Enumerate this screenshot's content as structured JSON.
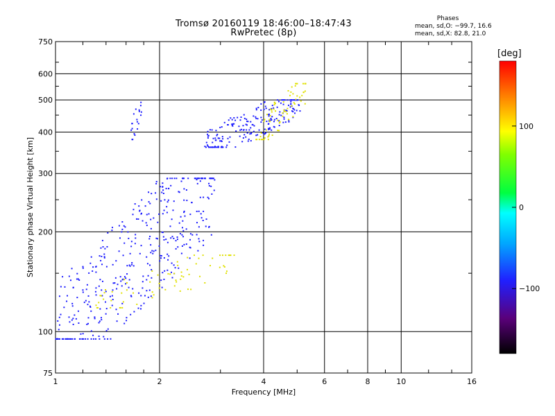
{
  "figure": {
    "title_line1": "Tromsø 20160119 18:46:00–18:47:43",
    "title_line2": "RwPretec (8p)",
    "stats_title": "Phases",
    "stats_line1": "mean, sd,O: −99.7, 16.6",
    "stats_line2": "mean, sd,X:  82.8, 21.0",
    "colorbar_label": "[deg]",
    "colorbar_ticks": [
      "100",
      "0",
      "−100"
    ]
  },
  "chart_data": {
    "type": "scatter",
    "title": "Tromsø 20160119 18:46:00–18:47:43",
    "subtitle": "RwPretec (8p)",
    "xlabel": "Frequency [MHz]",
    "ylabel": "Stationary phase Virtual Height [km]",
    "x_scale": "log",
    "y_scale": "log",
    "xlim": [
      1,
      16
    ],
    "ylim": [
      75,
      750
    ],
    "x_ticks": [
      1,
      2,
      4,
      6,
      8,
      10,
      16
    ],
    "x_tick_labels": [
      "1",
      "2",
      "4",
      "6",
      "8",
      "10",
      "16"
    ],
    "y_ticks": [
      75,
      100,
      200,
      300,
      400,
      500,
      600,
      750
    ],
    "y_tick_labels": [
      "75",
      "100",
      "200",
      "300",
      "400",
      "500",
      "600",
      "750"
    ],
    "grid": true,
    "color_scale": {
      "label": "[deg]",
      "range": [
        -180,
        180
      ],
      "ticks": [
        100,
        0,
        -100
      ],
      "colormap": "rainbow (black–purple–blue–cyan–green–yellow–red)"
    },
    "point_clusters": [
      {
        "description": "O-mode E/F1 trace",
        "freq_range": [
          1.0,
          2.9
        ],
        "height_range": [
          95,
          290
        ],
        "phase_deg": -100,
        "color": "#1a1aff"
      },
      {
        "description": "X-mode F trace low",
        "freq_range": [
          1.3,
          3.3
        ],
        "height_range": [
          118,
          170
        ],
        "phase_deg": 90,
        "color": "#e0e000"
      },
      {
        "description": "O-mode F2 trace",
        "freq_range": [
          2.7,
          5.1
        ],
        "height_range": [
          360,
          500
        ],
        "phase_deg": -100,
        "color": "#1a1aff"
      },
      {
        "description": "X-mode F2 trace",
        "freq_range": [
          3.8,
          5.3
        ],
        "height_range": [
          380,
          560
        ],
        "phase_deg": 90,
        "color": "#e0e000"
      },
      {
        "description": "Sporadic E echoes",
        "freq_range": [
          1.65,
          1.78
        ],
        "height_range": [
          380,
          510
        ],
        "phase_deg": -100,
        "color": "#1a1aff"
      }
    ]
  }
}
